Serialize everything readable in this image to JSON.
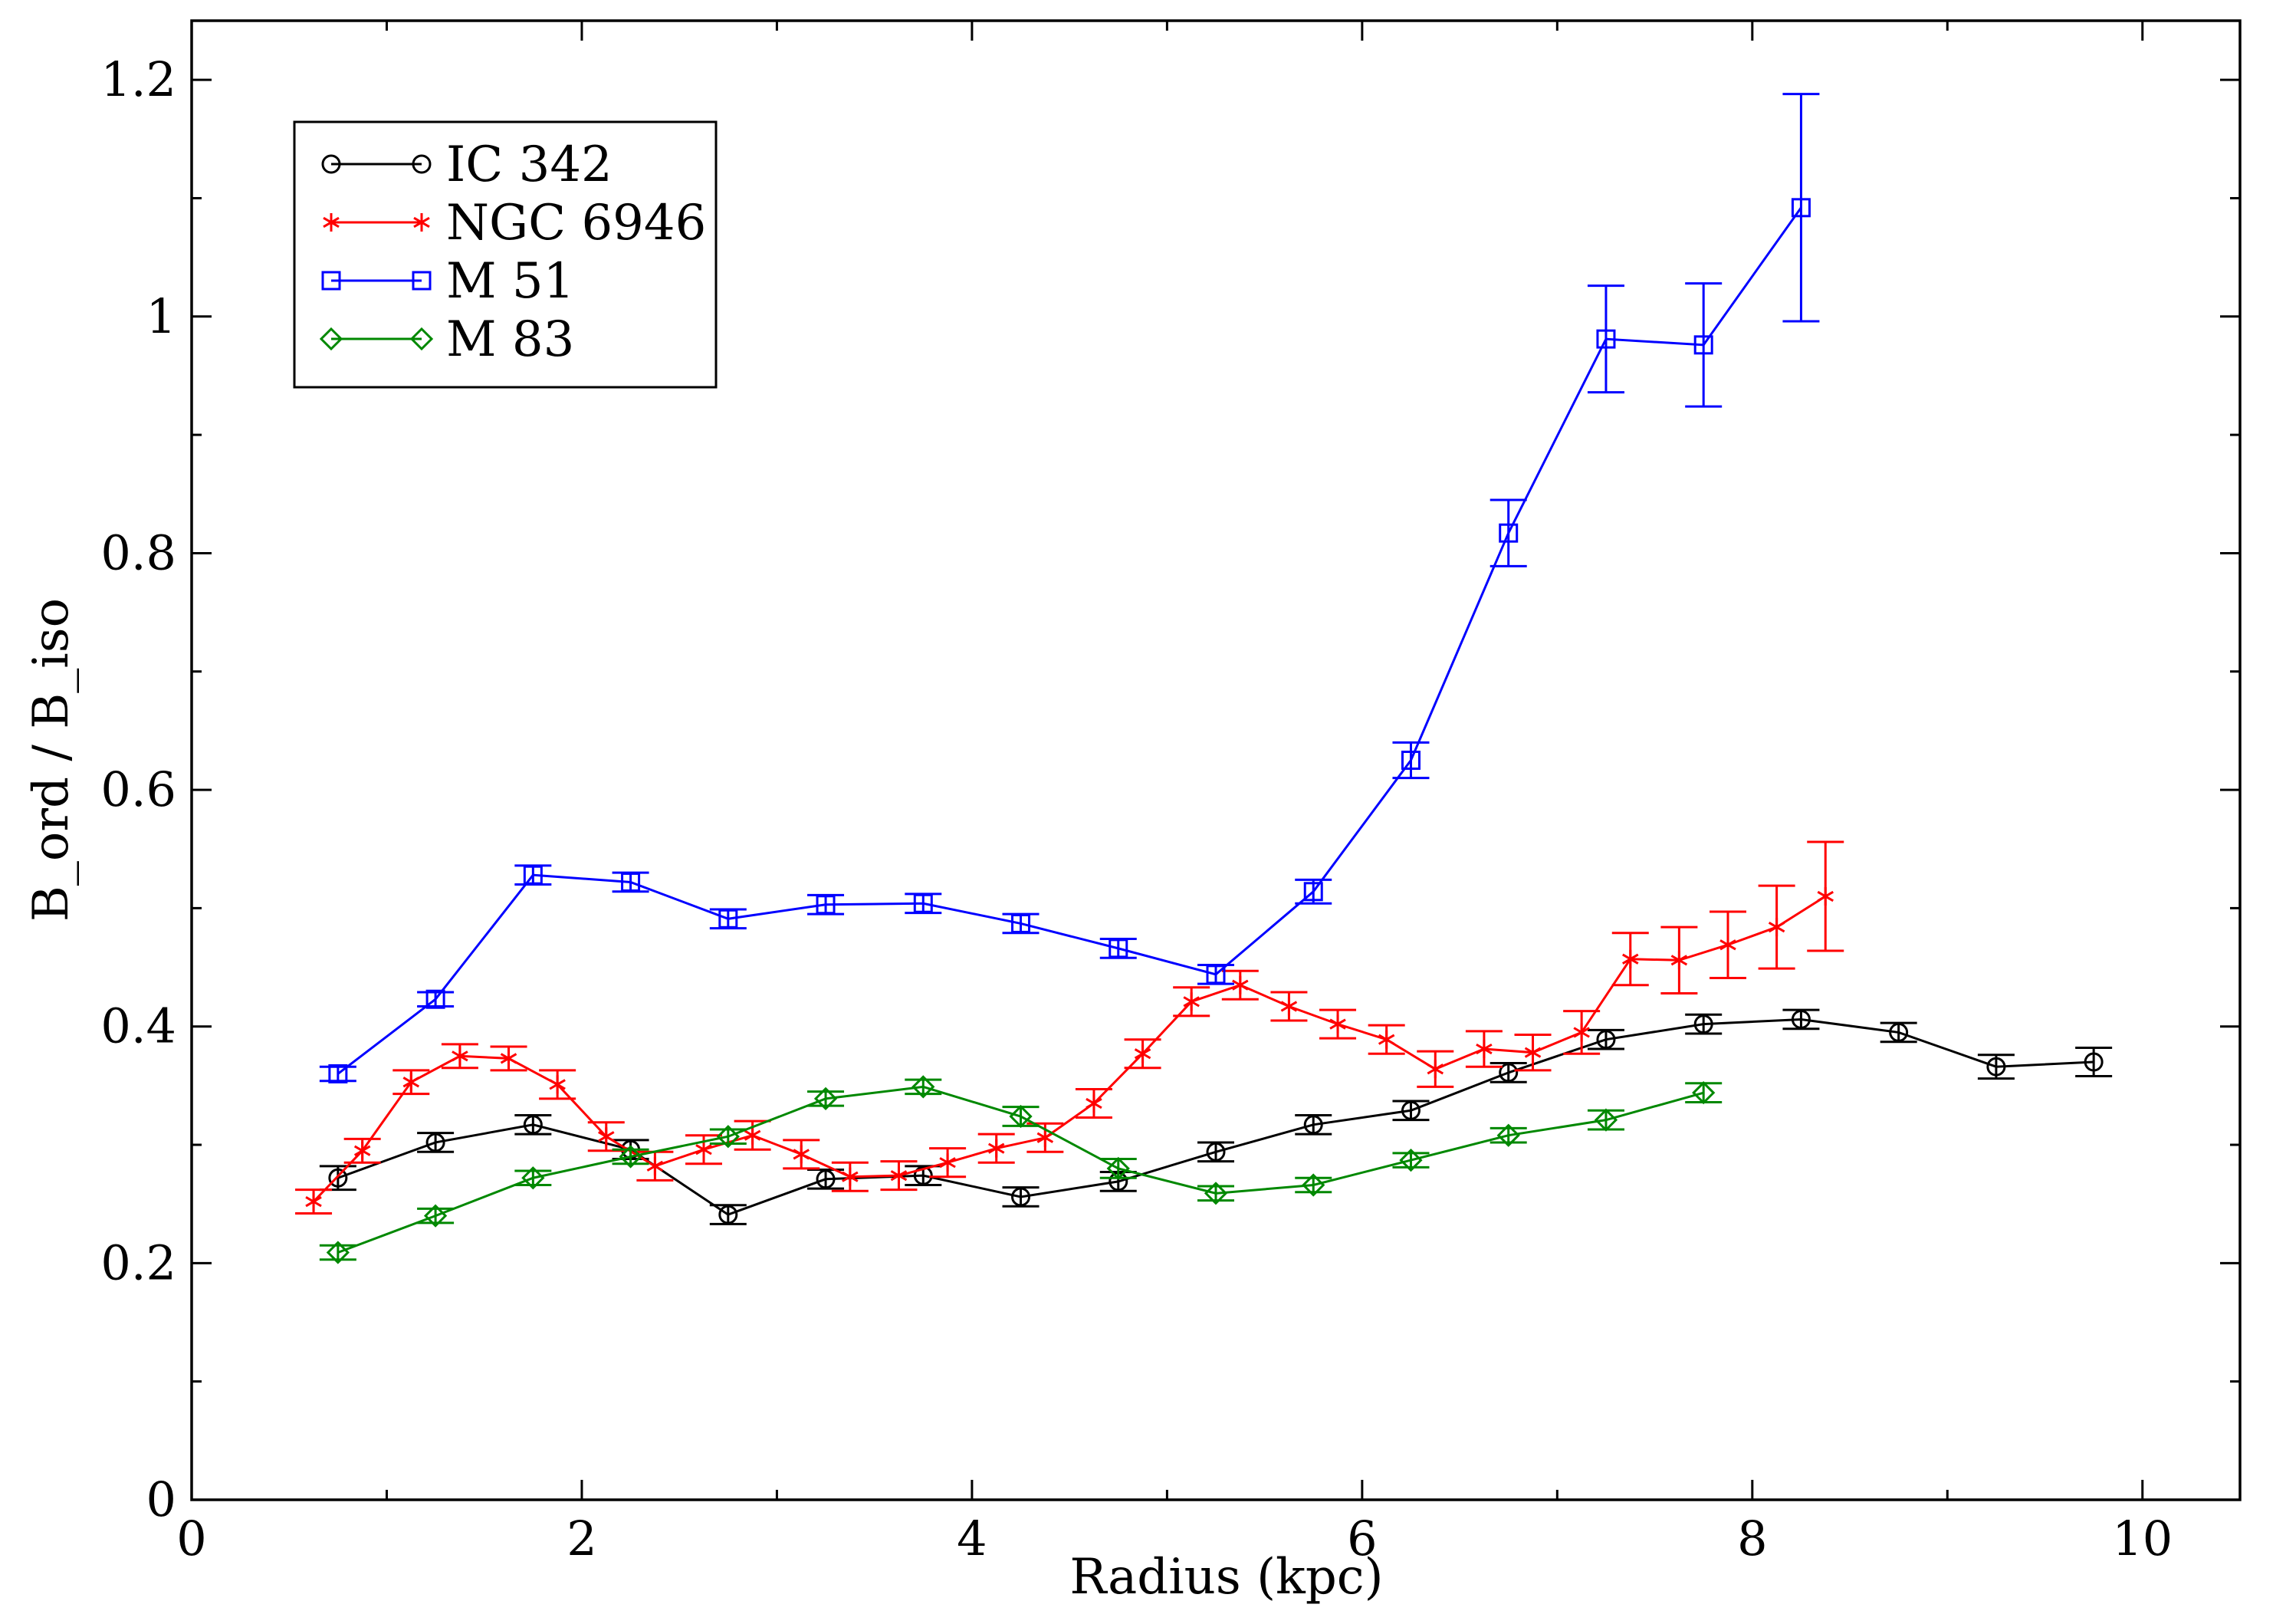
{
  "chart_data": {
    "type": "line",
    "title": "",
    "xlabel": "Radius (kpc)",
    "ylabel": "B_ord / B_iso",
    "xlim": [
      0,
      10.5
    ],
    "ylim": [
      0,
      1.25
    ],
    "x_ticks": [
      0,
      2,
      4,
      6,
      8,
      10
    ],
    "x_tick_labels": [
      "0",
      "2",
      "4",
      "6",
      "8",
      "10"
    ],
    "x_minor_ticks": [
      1,
      3,
      5,
      7,
      9
    ],
    "y_ticks": [
      0,
      0.2,
      0.4,
      0.6,
      0.8,
      1,
      1.2
    ],
    "y_tick_labels": [
      "0",
      "0.2",
      "0.4",
      "0.6",
      "0.8",
      "1",
      "1.2"
    ],
    "y_minor_ticks": [
      0.1,
      0.3,
      0.5,
      0.7,
      0.9,
      1.1
    ],
    "grid": false,
    "legend_position": "top-left",
    "series": [
      {
        "name": "IC 342",
        "color": "#000000",
        "marker": "circle",
        "x": [
          0.75,
          1.25,
          1.75,
          2.25,
          2.75,
          3.25,
          3.75,
          4.25,
          4.75,
          5.25,
          5.75,
          6.25,
          6.75,
          7.25,
          7.75,
          8.25,
          8.75,
          9.25,
          9.75
        ],
        "y": [
          0.272,
          0.302,
          0.317,
          0.296,
          0.241,
          0.271,
          0.274,
          0.256,
          0.269,
          0.294,
          0.317,
          0.329,
          0.361,
          0.389,
          0.402,
          0.406,
          0.395,
          0.366,
          0.37
        ],
        "err": [
          0.01,
          0.008,
          0.008,
          0.008,
          0.008,
          0.008,
          0.008,
          0.008,
          0.008,
          0.008,
          0.008,
          0.008,
          0.008,
          0.008,
          0.008,
          0.008,
          0.008,
          0.01,
          0.012
        ]
      },
      {
        "name": "NGC 6946",
        "color": "#ff0000",
        "marker": "star",
        "x": [
          0.625,
          0.875,
          1.125,
          1.375,
          1.625,
          1.875,
          2.125,
          2.375,
          2.625,
          2.875,
          3.125,
          3.375,
          3.625,
          3.875,
          4.125,
          4.375,
          4.625,
          4.875,
          5.125,
          5.375,
          5.625,
          5.875,
          6.125,
          6.375,
          6.625,
          6.875,
          7.125,
          7.375,
          7.625,
          7.875,
          8.125,
          8.375
        ],
        "y": [
          0.252,
          0.295,
          0.353,
          0.375,
          0.373,
          0.351,
          0.307,
          0.282,
          0.296,
          0.308,
          0.292,
          0.273,
          0.274,
          0.285,
          0.297,
          0.306,
          0.335,
          0.377,
          0.421,
          0.435,
          0.417,
          0.402,
          0.389,
          0.364,
          0.381,
          0.378,
          0.395,
          0.457,
          0.456,
          0.469,
          0.484,
          0.51
        ],
        "err": [
          0.01,
          0.01,
          0.01,
          0.01,
          0.01,
          0.012,
          0.012,
          0.012,
          0.012,
          0.012,
          0.012,
          0.012,
          0.012,
          0.012,
          0.012,
          0.012,
          0.012,
          0.012,
          0.012,
          0.012,
          0.012,
          0.012,
          0.012,
          0.015,
          0.015,
          0.015,
          0.018,
          0.022,
          0.028,
          0.028,
          0.035,
          0.046
        ]
      },
      {
        "name": "M 51",
        "color": "#0000ff",
        "marker": "square",
        "x": [
          0.75,
          1.25,
          1.75,
          2.25,
          2.75,
          3.25,
          3.75,
          4.25,
          4.75,
          5.25,
          5.75,
          6.25,
          6.75,
          7.25,
          7.75,
          8.25
        ],
        "y": [
          0.36,
          0.423,
          0.528,
          0.522,
          0.491,
          0.503,
          0.504,
          0.487,
          0.466,
          0.444,
          0.514,
          0.625,
          0.817,
          0.981,
          0.976,
          1.092
        ],
        "err": [
          0.006,
          0.006,
          0.008,
          0.008,
          0.008,
          0.008,
          0.008,
          0.008,
          0.008,
          0.008,
          0.01,
          0.015,
          0.028,
          0.045,
          0.052,
          0.096
        ]
      },
      {
        "name": "M 83",
        "color": "#008800",
        "marker": "diamond",
        "x": [
          0.75,
          1.25,
          1.75,
          2.25,
          2.75,
          3.25,
          3.75,
          4.25,
          4.75,
          5.25,
          5.75,
          6.25,
          6.75,
          7.25,
          7.75
        ],
        "y": [
          0.209,
          0.24,
          0.272,
          0.29,
          0.307,
          0.339,
          0.349,
          0.324,
          0.28,
          0.259,
          0.266,
          0.287,
          0.308,
          0.321,
          0.344
        ],
        "err": [
          0.006,
          0.006,
          0.006,
          0.006,
          0.006,
          0.006,
          0.006,
          0.008,
          0.008,
          0.006,
          0.006,
          0.006,
          0.006,
          0.008,
          0.008
        ]
      }
    ]
  }
}
